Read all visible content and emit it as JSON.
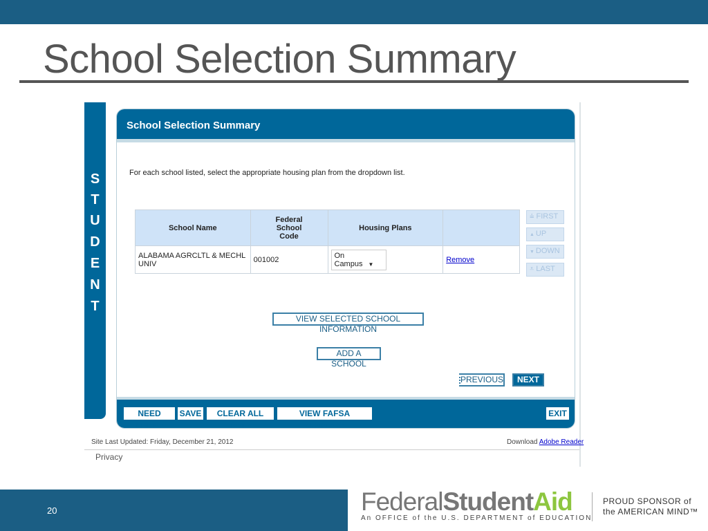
{
  "slide": {
    "title": "School Selection Summary",
    "page_number": "20"
  },
  "sidebar": {
    "letters": [
      "S",
      "T",
      "U",
      "D",
      "E",
      "N",
      "T"
    ]
  },
  "panel": {
    "title": "School Selection Summary",
    "instructions": "For each school listed, select the appropriate housing plan from the dropdown list."
  },
  "table": {
    "headers": [
      "School Name",
      "Federal School Code",
      "Housing Plans",
      ""
    ],
    "rows": [
      {
        "school_name": "ALABAMA AGRCLTL & MECHL UNIV",
        "code": "001002",
        "housing": "On Campus",
        "action": "Remove"
      }
    ]
  },
  "order_buttons": [
    "FIRST",
    "UP",
    "DOWN",
    "LAST"
  ],
  "order_icons": [
    "first-icon",
    "up-icon",
    "down-icon",
    "last-icon"
  ],
  "buttons": {
    "view_selected": "VIEW SELECTED SCHOOL INFORMATION",
    "add_school": "ADD A SCHOOL",
    "previous": "PREVIOUS",
    "next": "NEXT"
  },
  "footer_buttons": {
    "help": "NEED HELP?",
    "save": "SAVE",
    "clear": "CLEAR ALL DATA",
    "fafsa": "VIEW FAFSA SUMMARY",
    "exit": "EXIT"
  },
  "site": {
    "updated": "Site Last Updated: Friday, December 21, 2012",
    "download": "Download",
    "adobe": "Adobe Reader",
    "privacy": "Privacy"
  },
  "logo": {
    "federal": "Federal",
    "student": "Student",
    "aid": "Aid",
    "office": "An OFFICE of the U.S. DEPARTMENT of EDUCATION",
    "sponsor1": "PROUD SPONSOR of",
    "sponsor2": "the AMERICAN MIND™"
  },
  "colors": {
    "brand_blue": "#00679a",
    "slide_bar": "#1b5e84",
    "aid_green": "#8dc63f"
  }
}
